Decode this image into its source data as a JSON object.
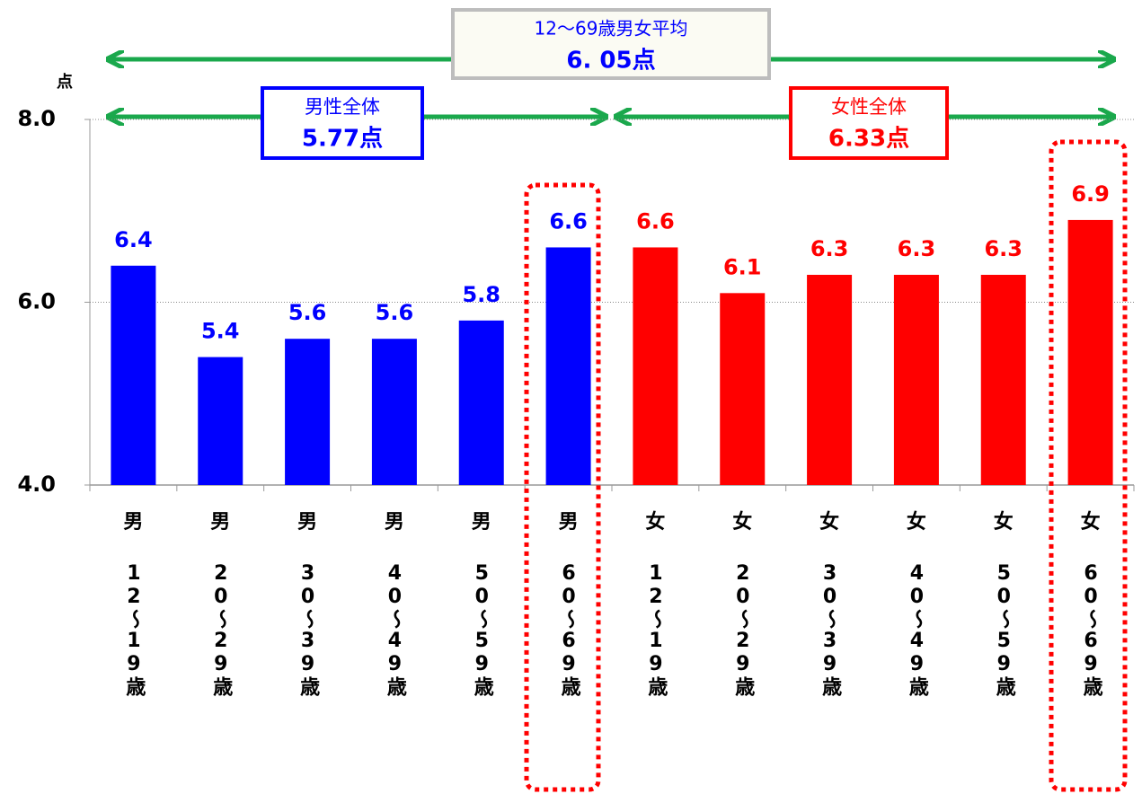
{
  "chart_data": {
    "type": "bar",
    "y_unit": "点",
    "categories": [
      "男",
      "男",
      "男",
      "男",
      "男",
      "男",
      "女",
      "女",
      "女",
      "女",
      "女",
      "女"
    ],
    "sub_categories": [
      "12〜19歳",
      "20〜29歳",
      "30〜39歳",
      "40〜49歳",
      "50〜59歳",
      "60〜69歳",
      "12〜19歳",
      "20〜29歳",
      "30〜39歳",
      "40〜49歳",
      "50〜59歳",
      "60〜69歳"
    ],
    "values": [
      6.4,
      5.4,
      5.6,
      5.6,
      5.8,
      6.6,
      6.6,
      6.1,
      6.3,
      6.3,
      6.3,
      6.9
    ],
    "colors": [
      "#0000ff",
      "#0000ff",
      "#0000ff",
      "#0000ff",
      "#0000ff",
      "#0000ff",
      "#ff0000",
      "#ff0000",
      "#ff0000",
      "#ff0000",
      "#ff0000",
      "#ff0000"
    ],
    "ylim": [
      4,
      8
    ],
    "yticks": [
      {
        "value": 4,
        "label": "4.0"
      },
      {
        "value": 6,
        "label": "6.0"
      },
      {
        "value": 8,
        "label": "8.0"
      }
    ],
    "grid": true,
    "annotations": {
      "overall": {
        "title": "12〜69歳男女平均",
        "value": "6. 05点"
      },
      "male": {
        "title": "男性全体",
        "value": "5.77点"
      },
      "female": {
        "title": "女性全体",
        "value": "6.33点"
      }
    }
  }
}
